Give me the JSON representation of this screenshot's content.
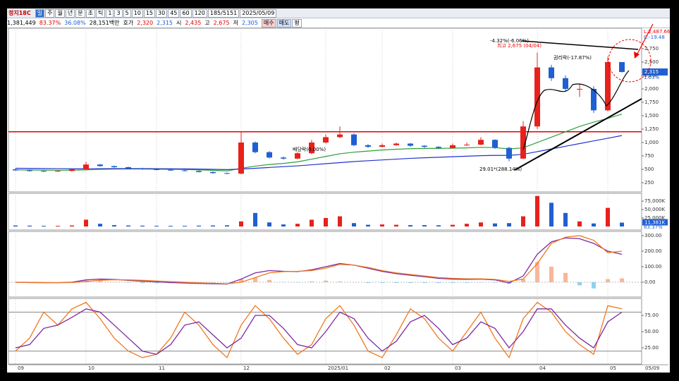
{
  "toolbar": {
    "code": "정지18C",
    "periods": [
      "일",
      "주",
      "월",
      "년",
      "분",
      "초",
      "틱"
    ],
    "minutes": [
      "1",
      "3",
      "5",
      "10",
      "15",
      "30",
      "45",
      "60",
      "120"
    ],
    "count": "185/5151",
    "date": "2025/05/09"
  },
  "info": [
    "1,381,449",
    "83.37%",
    "36.08%",
    "28,151백만",
    "호가",
    "2,320",
    "2,315",
    "시",
    "2,435",
    "고",
    "2,675",
    "저",
    "2,305",
    "매수",
    "매도",
    "평"
  ],
  "chart_data": [
    {
      "type": "candlestick",
      "categories": [
        "09",
        null,
        null,
        null,
        null,
        "10",
        null,
        null,
        null,
        null,
        "11",
        null,
        null,
        null,
        null,
        null,
        "12",
        null,
        null,
        null,
        null,
        null,
        "2025/01",
        null,
        null,
        null,
        "02",
        null,
        null,
        null,
        null,
        "03",
        null,
        null,
        null,
        null,
        null,
        "04",
        null,
        null,
        null,
        null,
        "05",
        null
      ],
      "open": [
        500,
        480,
        470,
        460,
        470,
        500,
        590,
        560,
        540,
        520,
        500,
        490,
        480,
        470,
        450,
        430,
        420,
        1000,
        820,
        720,
        700,
        800,
        1000,
        1100,
        1150,
        950,
        920,
        950,
        980,
        940,
        920,
        900,
        950,
        960,
        1050,
        900,
        700,
        1300,
        2400,
        2200,
        2000,
        2000,
        1600,
        2500
      ],
      "high": [
        520,
        500,
        480,
        490,
        520,
        640,
        600,
        570,
        550,
        530,
        510,
        500,
        490,
        480,
        460,
        440,
        1200,
        1020,
        840,
        740,
        820,
        1050,
        1150,
        1300,
        1170,
        970,
        980,
        1000,
        990,
        950,
        930,
        980,
        1000,
        1100,
        1060,
        920,
        1400,
        2675,
        2450,
        2250,
        2100,
        2050,
        2600,
        2500
      ],
      "low": [
        470,
        460,
        450,
        450,
        460,
        490,
        550,
        530,
        510,
        490,
        480,
        470,
        460,
        440,
        420,
        410,
        410,
        800,
        700,
        680,
        690,
        780,
        980,
        1080,
        930,
        900,
        910,
        940,
        920,
        900,
        880,
        890,
        940,
        950,
        880,
        650,
        690,
        1250,
        2150,
        1950,
        1850,
        1550,
        1580,
        2305
      ],
      "close": [
        480,
        470,
        460,
        470,
        500,
        590,
        560,
        540,
        520,
        500,
        490,
        480,
        470,
        450,
        430,
        420,
        1000,
        820,
        720,
        700,
        800,
        1000,
        1100,
        1150,
        950,
        920,
        950,
        980,
        940,
        920,
        900,
        950,
        960,
        1050,
        900,
        700,
        1300,
        2400,
        2200,
        2000,
        2000,
        1600,
        2500,
        2315
      ],
      "up_color": "#e8211b",
      "down_color": "#1f5fd1",
      "series": [
        {
          "color": "#2f9e3a",
          "values": [
            490,
            488,
            485,
            483,
            483,
            490,
            500,
            505,
            507,
            506,
            503,
            500,
            496,
            490,
            482,
            470,
            520,
            560,
            590,
            610,
            640,
            690,
            740,
            790,
            820,
            840,
            860,
            875,
            885,
            890,
            890,
            895,
            900,
            910,
            905,
            880,
            900,
            1000,
            1100,
            1200,
            1300,
            1380,
            1450,
            1530
          ]
        },
        {
          "color": "#2233cc",
          "values": [
            520,
            518,
            515,
            512,
            510,
            510,
            512,
            513,
            514,
            513,
            512,
            510,
            508,
            505,
            500,
            495,
            505,
            520,
            535,
            550,
            565,
            585,
            605,
            625,
            645,
            660,
            675,
            690,
            705,
            715,
            725,
            735,
            745,
            755,
            760,
            760,
            780,
            830,
            880,
            930,
            980,
            1030,
            1080,
            1130
          ]
        }
      ],
      "ylim": [
        79,
        3131
      ],
      "yticks": [
        {
          "value": 2750,
          "label": "2,750"
        },
        {
          "value": 2500,
          "label": "2,500"
        },
        {
          "value": 2250,
          "label": "2,250"
        },
        {
          "value": 2000,
          "label": "2,000"
        },
        {
          "value": 1750,
          "label": "1,750"
        },
        {
          "value": 1500,
          "label": "1,500"
        },
        {
          "value": 1250,
          "label": "1,250"
        },
        {
          "value": 1000,
          "label": "1,000"
        },
        750,
        500,
        250
      ],
      "hline": {
        "value": 1200,
        "color": "#e00000"
      },
      "last": {
        "value": 2315,
        "label": "2,315"
      },
      "annotations": [
        "-4.32%(-6.06%)",
        "최고 2,675 (04/04)",
        "권리락(-17.87%)",
        "배당락(0.00%)",
        "29.01*(288.14%)",
        "L:2,487.66",
        "C:-19.48",
        "1.03%"
      ],
      "x_end_label": "05/09"
    },
    {
      "type": "bar",
      "values": [
        3000,
        2500,
        2000,
        2000,
        3000,
        20000,
        8000,
        4000,
        3000,
        2500,
        2000,
        2000,
        2000,
        2500,
        3000,
        3500,
        15000,
        40000,
        12000,
        6000,
        8000,
        20000,
        25000,
        30000,
        10000,
        5000,
        6000,
        5000,
        4000,
        4000,
        3500,
        5000,
        8000,
        12000,
        9000,
        10000,
        30000,
        90000,
        70000,
        40000,
        15000,
        9000,
        55000,
        11381
      ],
      "ylim": [
        0,
        93750
      ],
      "yticks": [
        {
          "value": 75000,
          "label": "75,000K"
        },
        {
          "value": 50000,
          "label": "50,000K"
        },
        {
          "value": 25000,
          "label": "25,000K"
        }
      ],
      "last": {
        "value": 11381,
        "label": "11,381K"
      },
      "ratio": "83.37%"
    },
    {
      "type": "line",
      "series": [
        {
          "color": "#7b2aa0",
          "values": [
            0,
            -2,
            -3,
            -3,
            0,
            15,
            20,
            18,
            12,
            6,
            2,
            -2,
            -5,
            -8,
            -10,
            -12,
            20,
            60,
            75,
            70,
            68,
            80,
            100,
            120,
            110,
            90,
            70,
            55,
            45,
            35,
            25,
            20,
            18,
            20,
            15,
            -5,
            40,
            180,
            260,
            285,
            280,
            250,
            200,
            180
          ]
        },
        {
          "color": "#f07820",
          "values": [
            0,
            -1,
            -2,
            -3,
            -2,
            5,
            12,
            16,
            15,
            12,
            8,
            4,
            0,
            -4,
            -7,
            -10,
            0,
            30,
            60,
            68,
            70,
            75,
            90,
            115,
            110,
            95,
            75,
            60,
            50,
            40,
            30,
            25,
            22,
            22,
            18,
            5,
            20,
            120,
            250,
            290,
            300,
            270,
            190,
            200
          ]
        }
      ],
      "histogram": {
        "values": [
          0,
          -1,
          -1,
          0,
          2,
          10,
          8,
          2,
          -3,
          -6,
          -6,
          -6,
          -5,
          -4,
          -3,
          -2,
          20,
          30,
          15,
          2,
          -2,
          5,
          10,
          5,
          0,
          -5,
          -5,
          -5,
          -5,
          -5,
          -5,
          -5,
          -4,
          -2,
          -3,
          -10,
          20,
          130,
          100,
          60,
          -20,
          -40,
          20,
          25
        ],
        "pos_color": "#f6b79a",
        "neg_color": "#8fd0ee"
      },
      "ylim": [
        -91,
        318
      ],
      "yticks": [
        {
          "value": 300,
          "label": "300.00"
        },
        {
          "value": 200,
          "label": "200.00"
        },
        {
          "value": 100,
          "label": "100.00"
        },
        {
          "value": 0,
          "label": "0.00"
        }
      ]
    },
    {
      "type": "line",
      "series": [
        {
          "color": "#f07820",
          "values": [
            20,
            40,
            80,
            60,
            85,
            95,
            70,
            40,
            20,
            10,
            15,
            40,
            80,
            60,
            30,
            10,
            60,
            90,
            70,
            40,
            15,
            30,
            70,
            90,
            60,
            20,
            10,
            45,
            85,
            70,
            40,
            20,
            50,
            80,
            40,
            10,
            70,
            95,
            80,
            50,
            30,
            15,
            90,
            85
          ]
        },
        {
          "color": "#7b2aa0",
          "values": [
            25,
            30,
            55,
            60,
            72,
            85,
            80,
            60,
            40,
            20,
            15,
            30,
            60,
            65,
            45,
            25,
            40,
            75,
            75,
            55,
            30,
            25,
            50,
            80,
            70,
            40,
            20,
            35,
            65,
            75,
            55,
            30,
            40,
            65,
            55,
            25,
            50,
            85,
            85,
            60,
            40,
            25,
            65,
            80
          ]
        }
      ],
      "ylim": [
        0,
        100
      ],
      "yticks": [
        {
          "value": 75,
          "label": "75.00"
        },
        {
          "value": 50,
          "label": "50.00"
        },
        {
          "value": 25,
          "label": "25.00"
        }
      ],
      "levels": [
        20,
        80
      ]
    }
  ]
}
